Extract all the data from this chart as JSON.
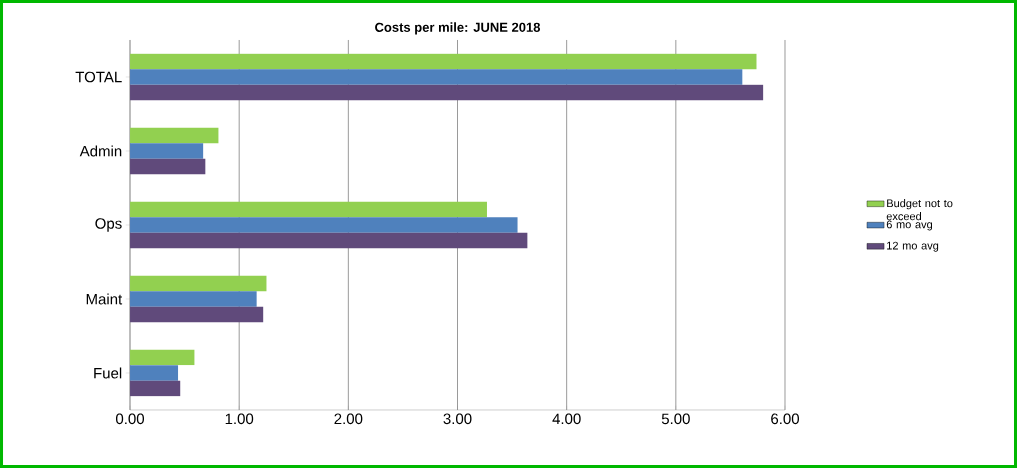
{
  "chart_data": {
    "type": "bar",
    "orientation": "horizontal",
    "title": "Costs per mile:  JUNE 2018",
    "categories": [
      "TOTAL",
      "Admin",
      "Ops",
      "Maint",
      "Fuel"
    ],
    "series": [
      {
        "name": "Budget not to exceed",
        "color": "#92d050",
        "values": [
          5.74,
          0.81,
          3.27,
          1.25,
          0.59
        ]
      },
      {
        "name": "6 mo avg",
        "color": "#4f81bd",
        "values": [
          5.61,
          0.67,
          3.55,
          1.16,
          0.44
        ]
      },
      {
        "name": "12 mo avg",
        "color": "#604a7b",
        "values": [
          5.8,
          0.69,
          3.64,
          1.22,
          0.46
        ]
      }
    ],
    "xlim": [
      0,
      6
    ],
    "xticks": [
      {
        "value": 0,
        "label": "0.00"
      },
      {
        "value": 1,
        "label": "1.00"
      },
      {
        "value": 2,
        "label": "2.00"
      },
      {
        "value": 3,
        "label": "3.00"
      },
      {
        "value": 4,
        "label": "4.00"
      },
      {
        "value": 5,
        "label": "5.00"
      },
      {
        "value": 6,
        "label": "6.00"
      }
    ],
    "grid": "x",
    "legend": "right"
  }
}
